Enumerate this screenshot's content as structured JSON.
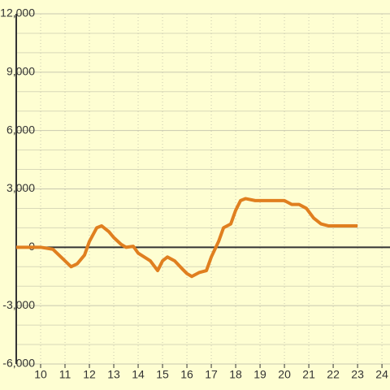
{
  "chart_data": {
    "type": "line",
    "x": [
      9,
      10,
      10.5,
      11,
      11.25,
      11.5,
      11.8,
      12,
      12.3,
      12.5,
      12.8,
      13,
      13.3,
      13.5,
      13.8,
      14,
      14.5,
      14.8,
      15,
      15.2,
      15.5,
      15.8,
      16,
      16.2,
      16.5,
      16.8,
      17,
      17.3,
      17.5,
      17.8,
      18,
      18.2,
      18.4,
      18.8,
      19,
      19.5,
      20,
      20.3,
      20.6,
      20.9,
      21.2,
      21.5,
      21.8,
      22,
      23
    ],
    "series": [
      {
        "color": "#e07f1f",
        "values": [
          0,
          0,
          -100,
          -700,
          -1000,
          -850,
          -400,
          300,
          1000,
          1100,
          800,
          500,
          150,
          0,
          50,
          -300,
          -700,
          -1200,
          -700,
          -500,
          -700,
          -1100,
          -1350,
          -1500,
          -1300,
          -1200,
          -500,
          300,
          1000,
          1200,
          1900,
          2400,
          2500,
          2400,
          2400,
          2400,
          2400,
          2200,
          2200,
          2000,
          1500,
          1200,
          1100,
          1100,
          1100
        ]
      }
    ],
    "xlim": [
      9,
      24.33
    ],
    "xticks": [
      10,
      11,
      12,
      13,
      14,
      15,
      16,
      17,
      18,
      19,
      20,
      21,
      22,
      23,
      24
    ],
    "ylim": [
      -6000,
      12000
    ],
    "yticks": [
      {
        "value": -6000,
        "label": "-6,000"
      },
      {
        "value": -3000,
        "label": "-3,000"
      },
      0,
      {
        "value": 3000,
        "label": "3,000"
      },
      {
        "value": 6000,
        "label": "6,000"
      },
      {
        "value": 9000,
        "label": "9,000"
      },
      {
        "value": 12000,
        "label": "12,000"
      }
    ],
    "minor_yticks": [
      -5000,
      -4000,
      -2000,
      -1000,
      1000,
      2000,
      4000,
      5000,
      7000,
      8000,
      10000,
      11000
    ],
    "grid": true
  }
}
